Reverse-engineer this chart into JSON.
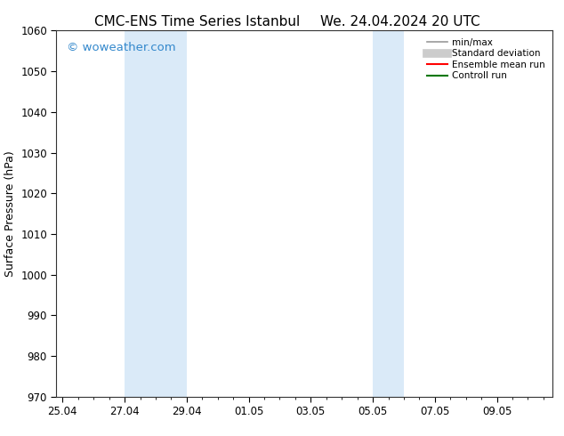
{
  "title_left": "CMC-ENS Time Series Istanbul",
  "title_right": "We. 24.04.2024 20 UTC",
  "ylabel": "Surface Pressure (hPa)",
  "ylim": [
    970,
    1060
  ],
  "yticks": [
    970,
    980,
    990,
    1000,
    1010,
    1020,
    1030,
    1040,
    1050,
    1060
  ],
  "x_tick_labels": [
    "25.04",
    "27.04",
    "29.04",
    "01.05",
    "03.05",
    "05.05",
    "07.05",
    "09.05"
  ],
  "x_tick_positions": [
    0,
    2,
    4,
    6,
    8,
    10,
    12,
    14
  ],
  "xlim": [
    -0.2,
    15.8
  ],
  "background_color": "#ffffff",
  "shaded_regions": [
    {
      "x_start": 2,
      "x_end": 4
    },
    {
      "x_start": 10,
      "x_end": 11
    }
  ],
  "shaded_color": "#daeaf8",
  "watermark": "© woweather.com",
  "watermark_color": "#3388cc",
  "legend_entries": [
    {
      "label": "min/max",
      "color": "#999999",
      "lw": 1.2,
      "style": "solid"
    },
    {
      "label": "Standard deviation",
      "color": "#cccccc",
      "lw": 7,
      "style": "solid"
    },
    {
      "label": "Ensemble mean run",
      "color": "#ff0000",
      "lw": 1.5,
      "style": "solid"
    },
    {
      "label": "Controll run",
      "color": "#007700",
      "lw": 1.5,
      "style": "solid"
    }
  ],
  "font_family": "DejaVu Sans",
  "title_fontsize": 11,
  "tick_fontsize": 8.5,
  "watermark_fontsize": 9.5,
  "axis_label_fontsize": 9,
  "legend_fontsize": 7.5
}
